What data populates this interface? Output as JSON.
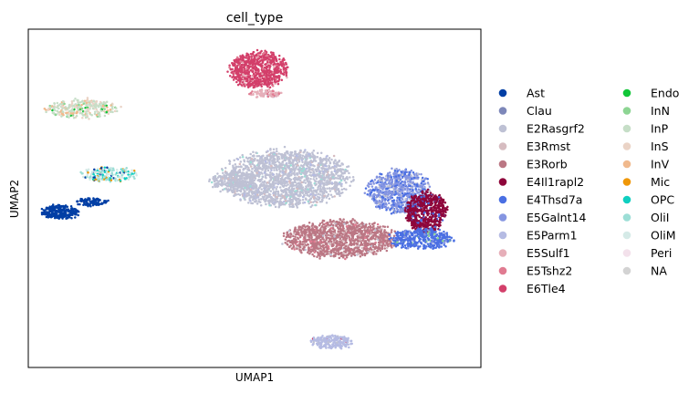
{
  "chart_data": {
    "type": "scatter",
    "title": "cell_type",
    "xlabel": "UMAP1",
    "ylabel": "UMAP2",
    "xlim": [
      0,
      100
    ],
    "ylim": [
      0,
      100
    ],
    "grid": false,
    "axis_ticks": false,
    "legend_position": "right",
    "legend_columns": 2,
    "series": [
      {
        "name": "Ast",
        "color": "#023fa5"
      },
      {
        "name": "Clau",
        "color": "#7d87b9"
      },
      {
        "name": "E2Rasgrf2",
        "color": "#bec1d4"
      },
      {
        "name": "E3Rmst",
        "color": "#d6bcc0"
      },
      {
        "name": "E3Rorb",
        "color": "#bb7784"
      },
      {
        "name": "E4Il1rapl2",
        "color": "#8e063b"
      },
      {
        "name": "E4Thsd7a",
        "color": "#4a6fe3"
      },
      {
        "name": "E5Galnt14",
        "color": "#8595e1"
      },
      {
        "name": "E5Parm1",
        "color": "#b5bbe3"
      },
      {
        "name": "E5Sulf1",
        "color": "#e6afb9"
      },
      {
        "name": "E5Tshz2",
        "color": "#e07b91"
      },
      {
        "name": "E6Tle4",
        "color": "#d33f6a"
      },
      {
        "name": "Endo",
        "color": "#11c638"
      },
      {
        "name": "InN",
        "color": "#8dd593"
      },
      {
        "name": "InP",
        "color": "#c6dec7"
      },
      {
        "name": "InS",
        "color": "#ead3c6"
      },
      {
        "name": "InV",
        "color": "#f0b98d"
      },
      {
        "name": "Mic",
        "color": "#ef9708"
      },
      {
        "name": "OPC",
        "color": "#0fcfc0"
      },
      {
        "name": "OliI",
        "color": "#9cded6"
      },
      {
        "name": "OliM",
        "color": "#d5eae7"
      },
      {
        "name": "Peri",
        "color": "#f3e1eb"
      },
      {
        "name": "NA",
        "color": "#d3d3d3"
      }
    ],
    "clusters": [
      {
        "label": "E6Tle4",
        "cx": 51,
        "cy": 88,
        "rx": 6.5,
        "ry": 5.5,
        "n": 750,
        "mix": [
          [
            "E6Tle4",
            0.9
          ],
          [
            "E5Tshz2",
            0.06
          ],
          [
            "E5Sulf1",
            0.04
          ]
        ]
      },
      {
        "label": "E5Sulf1",
        "cx": 52.5,
        "cy": 81,
        "rx": 3.5,
        "ry": 1.2,
        "n": 90,
        "mix": [
          [
            "E5Sulf1",
            0.6
          ],
          [
            "E5Tshz2",
            0.3
          ],
          [
            "E2Rasgrf2",
            0.1
          ]
        ]
      },
      {
        "label": "InP",
        "cx": 12,
        "cy": 76.5,
        "rx": 8,
        "ry": 2.8,
        "n": 300,
        "mix": [
          [
            "InP",
            0.55
          ],
          [
            "InS",
            0.25
          ],
          [
            "InV",
            0.12
          ],
          [
            "InN",
            0.05
          ],
          [
            "Endo",
            0.03
          ]
        ]
      },
      {
        "label": "OliI",
        "cx": 18,
        "cy": 57,
        "rx": 6,
        "ry": 2.2,
        "n": 190,
        "mix": [
          [
            "OliI",
            0.4
          ],
          [
            "OliM",
            0.25
          ],
          [
            "OPC",
            0.15
          ],
          [
            "Mic",
            0.12
          ],
          [
            "Ast",
            0.08
          ]
        ]
      },
      {
        "label": "Ast",
        "cx": 7,
        "cy": 46,
        "rx": 4.2,
        "ry": 2,
        "n": 260,
        "mix": [
          [
            "Ast",
            1.0
          ]
        ]
      },
      {
        "label": "Ast",
        "cx": 14,
        "cy": 49,
        "rx": 3.5,
        "ry": 1.2,
        "n": 100,
        "mix": [
          [
            "Ast",
            0.95
          ],
          [
            "Clau",
            0.05
          ]
        ]
      },
      {
        "label": "E2Rasgrf2",
        "cx": 57,
        "cy": 56,
        "rx": 14,
        "ry": 8.5,
        "n": 1900,
        "mix": [
          [
            "E2Rasgrf2",
            0.88
          ],
          [
            "E5Parm1",
            0.05
          ],
          [
            "OliI",
            0.03
          ],
          [
            "E3Rmst",
            0.04
          ]
        ]
      },
      {
        "label": "E2Rasgrf2",
        "cx": 45,
        "cy": 55,
        "rx": 5,
        "ry": 3,
        "n": 180,
        "mix": [
          [
            "E2Rasgrf2",
            0.95
          ],
          [
            "OliI",
            0.05
          ]
        ]
      },
      {
        "label": "E3Rorb",
        "cx": 69,
        "cy": 38,
        "rx": 12,
        "ry": 5.5,
        "n": 1300,
        "mix": [
          [
            "E3Rorb",
            0.85
          ],
          [
            "E3Rmst",
            0.08
          ],
          [
            "E5Tshz2",
            0.04
          ],
          [
            "E2Rasgrf2",
            0.03
          ]
        ]
      },
      {
        "label": "E5Galnt14",
        "cx": 82,
        "cy": 52,
        "rx": 7,
        "ry": 6.5,
        "n": 800,
        "mix": [
          [
            "E5Galnt14",
            0.6
          ],
          [
            "E4Thsd7a",
            0.3
          ],
          [
            "E2Rasgrf2",
            0.1
          ]
        ]
      },
      {
        "label": "E4Il1rapl2",
        "cx": 88,
        "cy": 46,
        "rx": 4.5,
        "ry": 6,
        "n": 650,
        "mix": [
          [
            "E4Il1rapl2",
            0.88
          ],
          [
            "E4Thsd7a",
            0.12
          ]
        ]
      },
      {
        "label": "E4Thsd7a",
        "cx": 87,
        "cy": 38,
        "rx": 7,
        "ry": 3,
        "n": 420,
        "mix": [
          [
            "E4Thsd7a",
            0.85
          ],
          [
            "E5Galnt14",
            0.1
          ],
          [
            "InN",
            0.05
          ]
        ]
      },
      {
        "label": "E5Parm1",
        "cx": 67,
        "cy": 7.5,
        "rx": 4.5,
        "ry": 2,
        "n": 230,
        "mix": [
          [
            "E5Parm1",
            0.93
          ],
          [
            "E6Tle4",
            0.03
          ],
          [
            "E2Rasgrf2",
            0.04
          ]
        ]
      }
    ]
  }
}
